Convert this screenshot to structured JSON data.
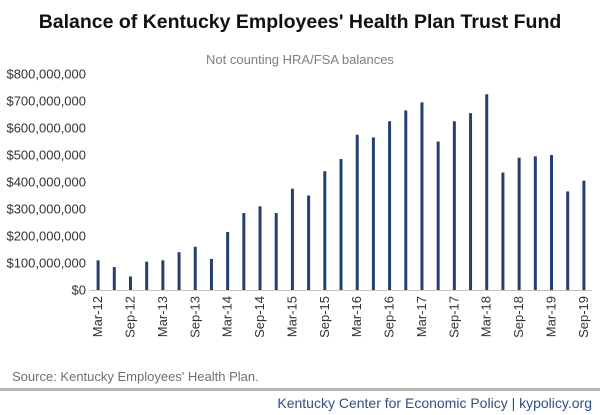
{
  "chart_data": {
    "type": "bar",
    "title": "Balance of Kentucky Employees' Health Plan Trust Fund",
    "subtitle": "Not counting HRA/FSA balances",
    "xlabel": "",
    "ylabel": "",
    "ylim": [
      0,
      800000000
    ],
    "yticks": [
      0,
      100000000,
      200000000,
      300000000,
      400000000,
      500000000,
      600000000,
      700000000,
      800000000
    ],
    "ytick_labels": [
      "$0",
      "$100,000,000",
      "$200,000,000",
      "$300,000,000",
      "$400,000,000",
      "$500,000,000",
      "$600,000,000",
      "$700,000,000",
      "$800,000,000"
    ],
    "categories": [
      "Mar-12",
      "Jun-12",
      "Sep-12",
      "Dec-12",
      "Mar-13",
      "Jun-13",
      "Sep-13",
      "Dec-13",
      "Mar-14",
      "Jun-14",
      "Sep-14",
      "Dec-14",
      "Mar-15",
      "Jun-15",
      "Sep-15",
      "Dec-15",
      "Mar-16",
      "Jun-16",
      "Sep-16",
      "Dec-16",
      "Mar-17",
      "Jun-17",
      "Sep-17",
      "Dec-17",
      "Mar-18",
      "Jun-18",
      "Sep-18",
      "Dec-18",
      "Mar-19",
      "Jun-19",
      "Sep-19"
    ],
    "tick_labels_shown": [
      "Mar-12",
      "",
      "Sep-12",
      "",
      "Mar-13",
      "",
      "Sep-13",
      "",
      "Mar-14",
      "",
      "Sep-14",
      "",
      "Mar-15",
      "",
      "Sep-15",
      "",
      "Mar-16",
      "",
      "Sep-16",
      "",
      "Mar-17",
      "",
      "Sep-17",
      "",
      "Mar-18",
      "",
      "Sep-18",
      "",
      "Mar-19",
      "",
      "Sep-19"
    ],
    "values": [
      110000000,
      85000000,
      50000000,
      105000000,
      110000000,
      140000000,
      160000000,
      115000000,
      215000000,
      285000000,
      310000000,
      285000000,
      375000000,
      350000000,
      440000000,
      485000000,
      575000000,
      565000000,
      625000000,
      665000000,
      695000000,
      550000000,
      625000000,
      655000000,
      725000000,
      435000000,
      490000000,
      495000000,
      500000000,
      365000000,
      405000000
    ],
    "bar_color": "#243f73",
    "grid": false
  },
  "source": "Source: Kentucky Employees' Health Plan.",
  "footer": "Kentucky Center for Economic Policy | kypolicy.org"
}
